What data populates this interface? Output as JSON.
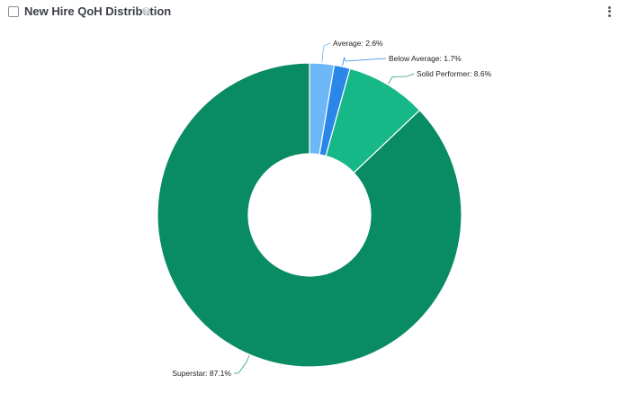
{
  "header": {
    "title": "New Hire QoH Distribution",
    "help_icon": "question-circle-icon",
    "menu_icon": "kebab-menu-icon"
  },
  "chart_data": {
    "type": "pie",
    "title": "New Hire QoH Distribution",
    "donut": true,
    "slices": [
      {
        "label": "Average: 2.6%",
        "name": "Average",
        "value": 2.6,
        "color": "#6cb8f6"
      },
      {
        "label": "Below Average: 1.7%",
        "name": "Below Average",
        "value": 1.7,
        "color": "#2a86e8"
      },
      {
        "label": "Solid Performer: 8.6%",
        "name": "Solid Performer",
        "value": 8.6,
        "color": "#15b886"
      },
      {
        "label": "Superstar: 87.1%",
        "name": "Superstar",
        "value": 87.1,
        "color": "#098b63"
      }
    ],
    "colors": {
      "leader_line": "#2a9d76"
    }
  }
}
